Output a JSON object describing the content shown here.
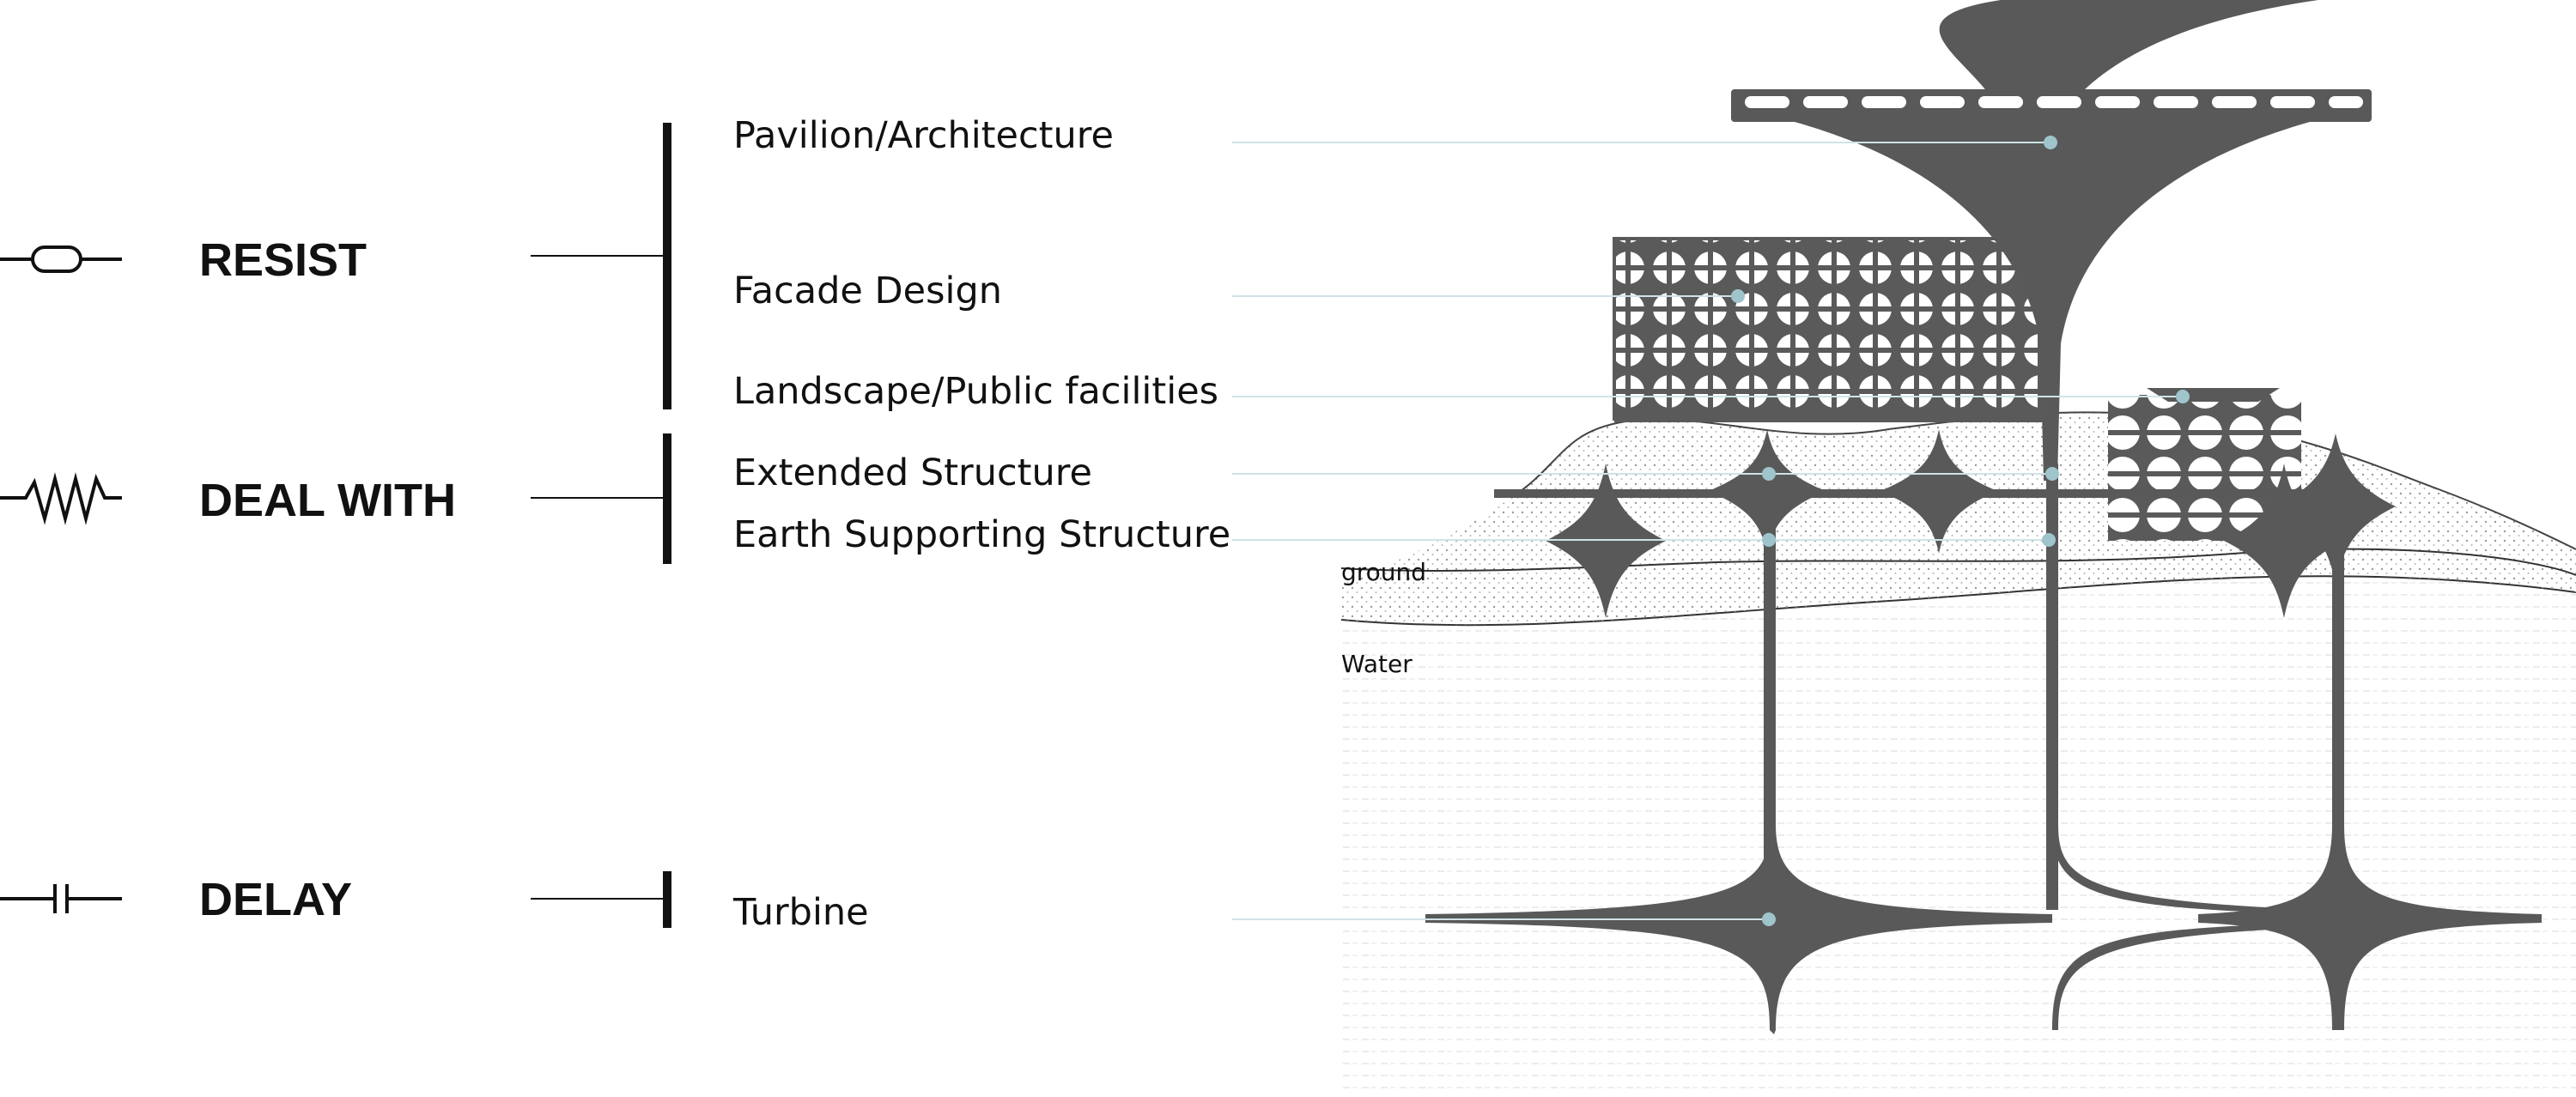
{
  "categories": [
    {
      "label": "RESIST",
      "symbol": "resistor-rounded-icon"
    },
    {
      "label": "DEAL WITH",
      "symbol": "zigzag-resistor-icon"
    },
    {
      "label": "DELAY",
      "symbol": "capacitor-icon"
    }
  ],
  "items": [
    "Pavilion/Architecture",
    "Facade Design",
    "Landscape/Public facilities",
    "Extended Structure",
    "Earth Supporting Structure",
    "Turbine"
  ],
  "layers": {
    "ground": "ground",
    "water": "Water"
  },
  "colors": {
    "structure": "#595959",
    "leader": "#cfe3e7",
    "marker": "#9fc4cc",
    "line": "#111111",
    "stipple": "#b8b8b8"
  }
}
